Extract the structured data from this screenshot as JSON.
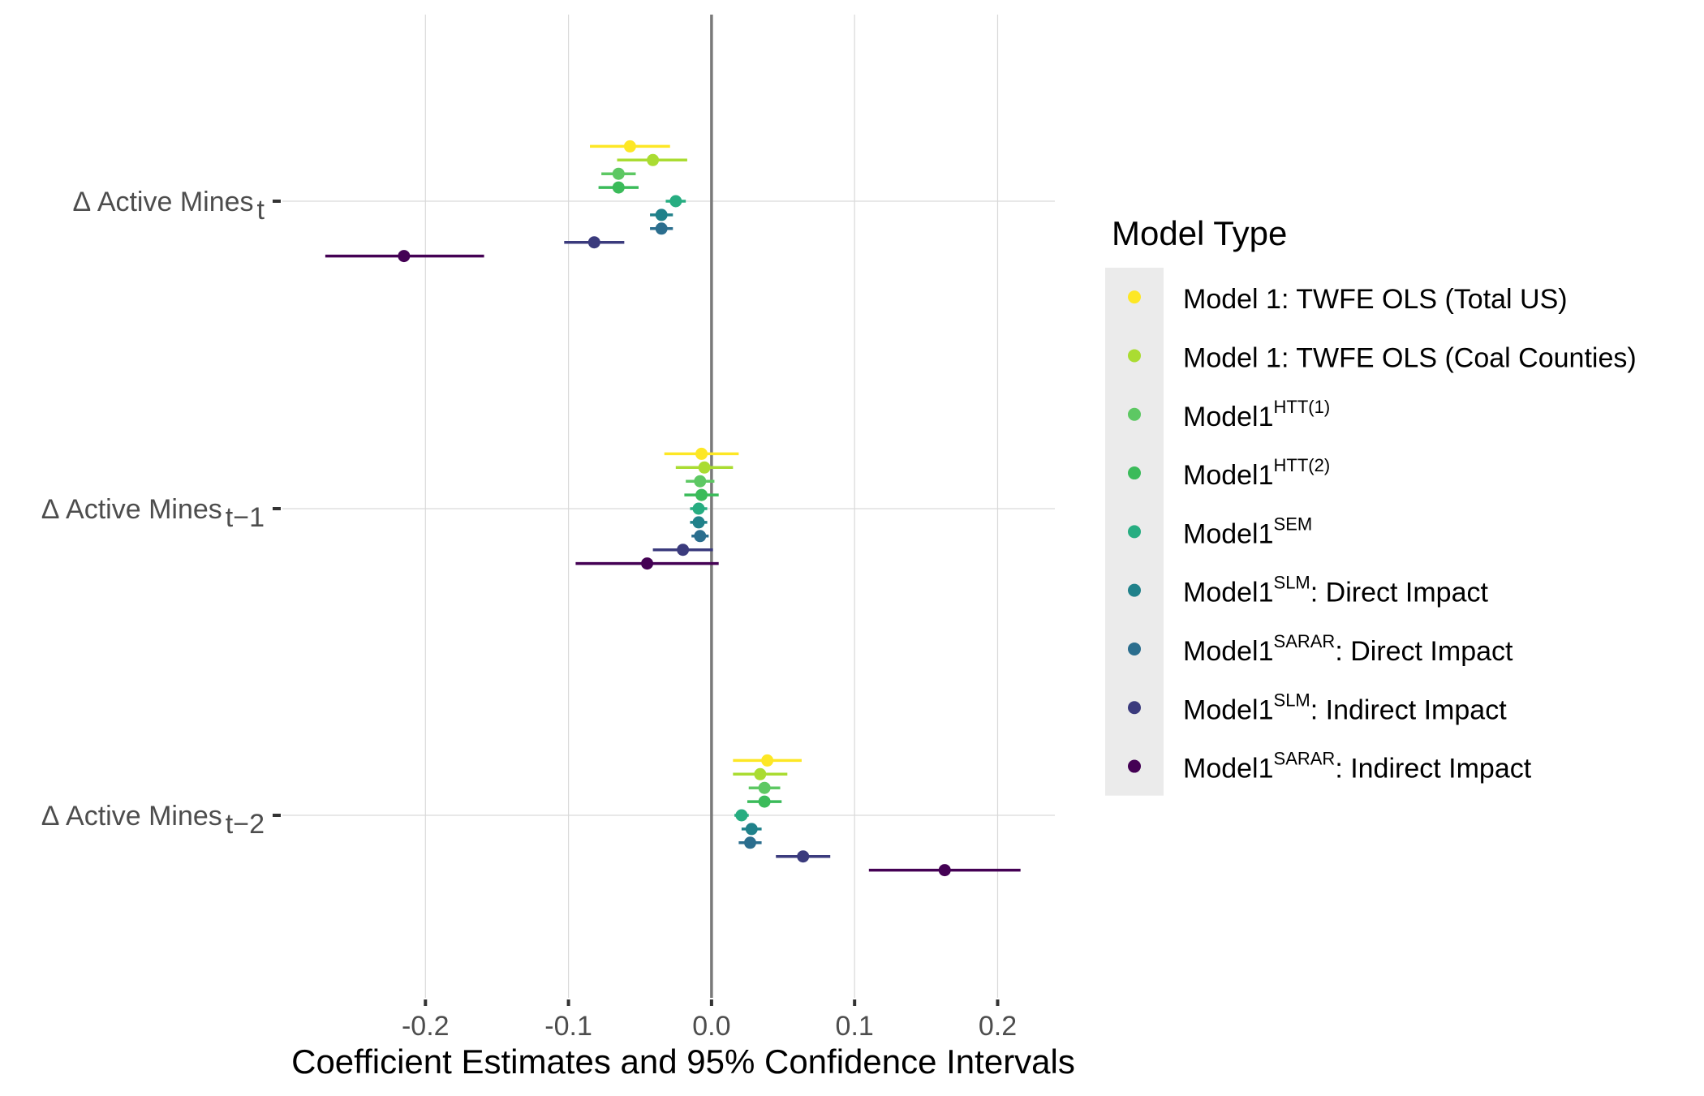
{
  "chart_data": {
    "type": "scatter",
    "subtype": "coefficient-plot-with-horizontal-error-bars",
    "xlabel": "Coefficient Estimates and 95% Confidence Intervals",
    "xlim": [
      -0.3,
      0.24
    ],
    "xticks": [
      {
        "value": -0.2,
        "label": "-0.2"
      },
      {
        "value": -0.1,
        "label": "-0.1"
      },
      {
        "value": 0.0,
        "label": "0.0"
      },
      {
        "value": 0.1,
        "label": "0.1"
      },
      {
        "value": 0.2,
        "label": "0.2"
      }
    ],
    "reference_line_x": 0,
    "grid": true,
    "legend_position": "right",
    "legend_title": "Model Type",
    "categories": [
      {
        "label": "Δ Active Mines",
        "sub": "t"
      },
      {
        "label": "Δ Active Mines",
        "sub": "t−1"
      },
      {
        "label": "Δ Active Mines",
        "sub": "t−2"
      }
    ],
    "series": [
      {
        "name": "Model 1: TWFE OLS (Total US)",
        "base": "Model 1: TWFE OLS (Total US)",
        "sup": "",
        "suffix": "",
        "color": "#FDE725",
        "estimates": [
          -0.057,
          -0.007,
          0.039
        ],
        "ci_low": [
          -0.085,
          -0.033,
          0.015
        ],
        "ci_high": [
          -0.029,
          0.019,
          0.063
        ]
      },
      {
        "name": "Model 1: TWFE OLS (Coal Counties)",
        "base": "Model 1: TWFE OLS (Coal Counties)",
        "sup": "",
        "suffix": "",
        "color": "#AADC32",
        "estimates": [
          -0.041,
          -0.005,
          0.034
        ],
        "ci_low": [
          -0.066,
          -0.025,
          0.015
        ],
        "ci_high": [
          -0.017,
          0.015,
          0.053
        ]
      },
      {
        "name": "Model1 HTT(1)",
        "base": "Model1",
        "sup": "HTT(1)",
        "suffix": "",
        "color": "#5DC863",
        "estimates": [
          -0.065,
          -0.008,
          0.037
        ],
        "ci_low": [
          -0.077,
          -0.018,
          0.026
        ],
        "ci_high": [
          -0.053,
          0.002,
          0.048
        ]
      },
      {
        "name": "Model1 HTT(2)",
        "base": "Model1",
        "sup": "HTT(2)",
        "suffix": "",
        "color": "#3BBB5A",
        "estimates": [
          -0.065,
          -0.007,
          0.037
        ],
        "ci_low": [
          -0.079,
          -0.019,
          0.025
        ],
        "ci_high": [
          -0.051,
          0.005,
          0.049
        ]
      },
      {
        "name": "Model1 SEM",
        "base": "Model1",
        "sup": "SEM",
        "suffix": "",
        "color": "#27AD81",
        "estimates": [
          -0.025,
          -0.009,
          0.021
        ],
        "ci_low": [
          -0.032,
          -0.015,
          0.016
        ],
        "ci_high": [
          -0.018,
          -0.003,
          0.026
        ]
      },
      {
        "name": "Model1 SLM: Direct Impact",
        "base": "Model1",
        "sup": "SLM",
        "suffix": ": Direct Impact",
        "color": "#20818A",
        "estimates": [
          -0.035,
          -0.009,
          0.028
        ],
        "ci_low": [
          -0.043,
          -0.015,
          0.021
        ],
        "ci_high": [
          -0.027,
          -0.003,
          0.035
        ]
      },
      {
        "name": "Model1 SARAR: Direct Impact",
        "base": "Model1",
        "sup": "SARAR",
        "suffix": ": Direct Impact",
        "color": "#2B6E8E",
        "estimates": [
          -0.035,
          -0.008,
          0.027
        ],
        "ci_low": [
          -0.043,
          -0.014,
          0.019
        ],
        "ci_high": [
          -0.027,
          -0.002,
          0.035
        ]
      },
      {
        "name": "Model1 SLM: Indirect Impact",
        "base": "Model1",
        "sup": "SLM",
        "suffix": ": Indirect Impact",
        "color": "#3B3B7D",
        "estimates": [
          -0.082,
          -0.02,
          0.064
        ],
        "ci_low": [
          -0.103,
          -0.041,
          0.045
        ],
        "ci_high": [
          -0.061,
          0.001,
          0.083
        ]
      },
      {
        "name": "Model1 SARAR: Indirect Impact",
        "base": "Model1",
        "sup": "SARAR",
        "suffix": ": Indirect Impact",
        "color": "#440154",
        "estimates": [
          -0.215,
          -0.045,
          0.163
        ],
        "ci_low": [
          -0.27,
          -0.095,
          0.11
        ],
        "ci_high": [
          -0.159,
          0.005,
          0.216
        ]
      }
    ]
  }
}
